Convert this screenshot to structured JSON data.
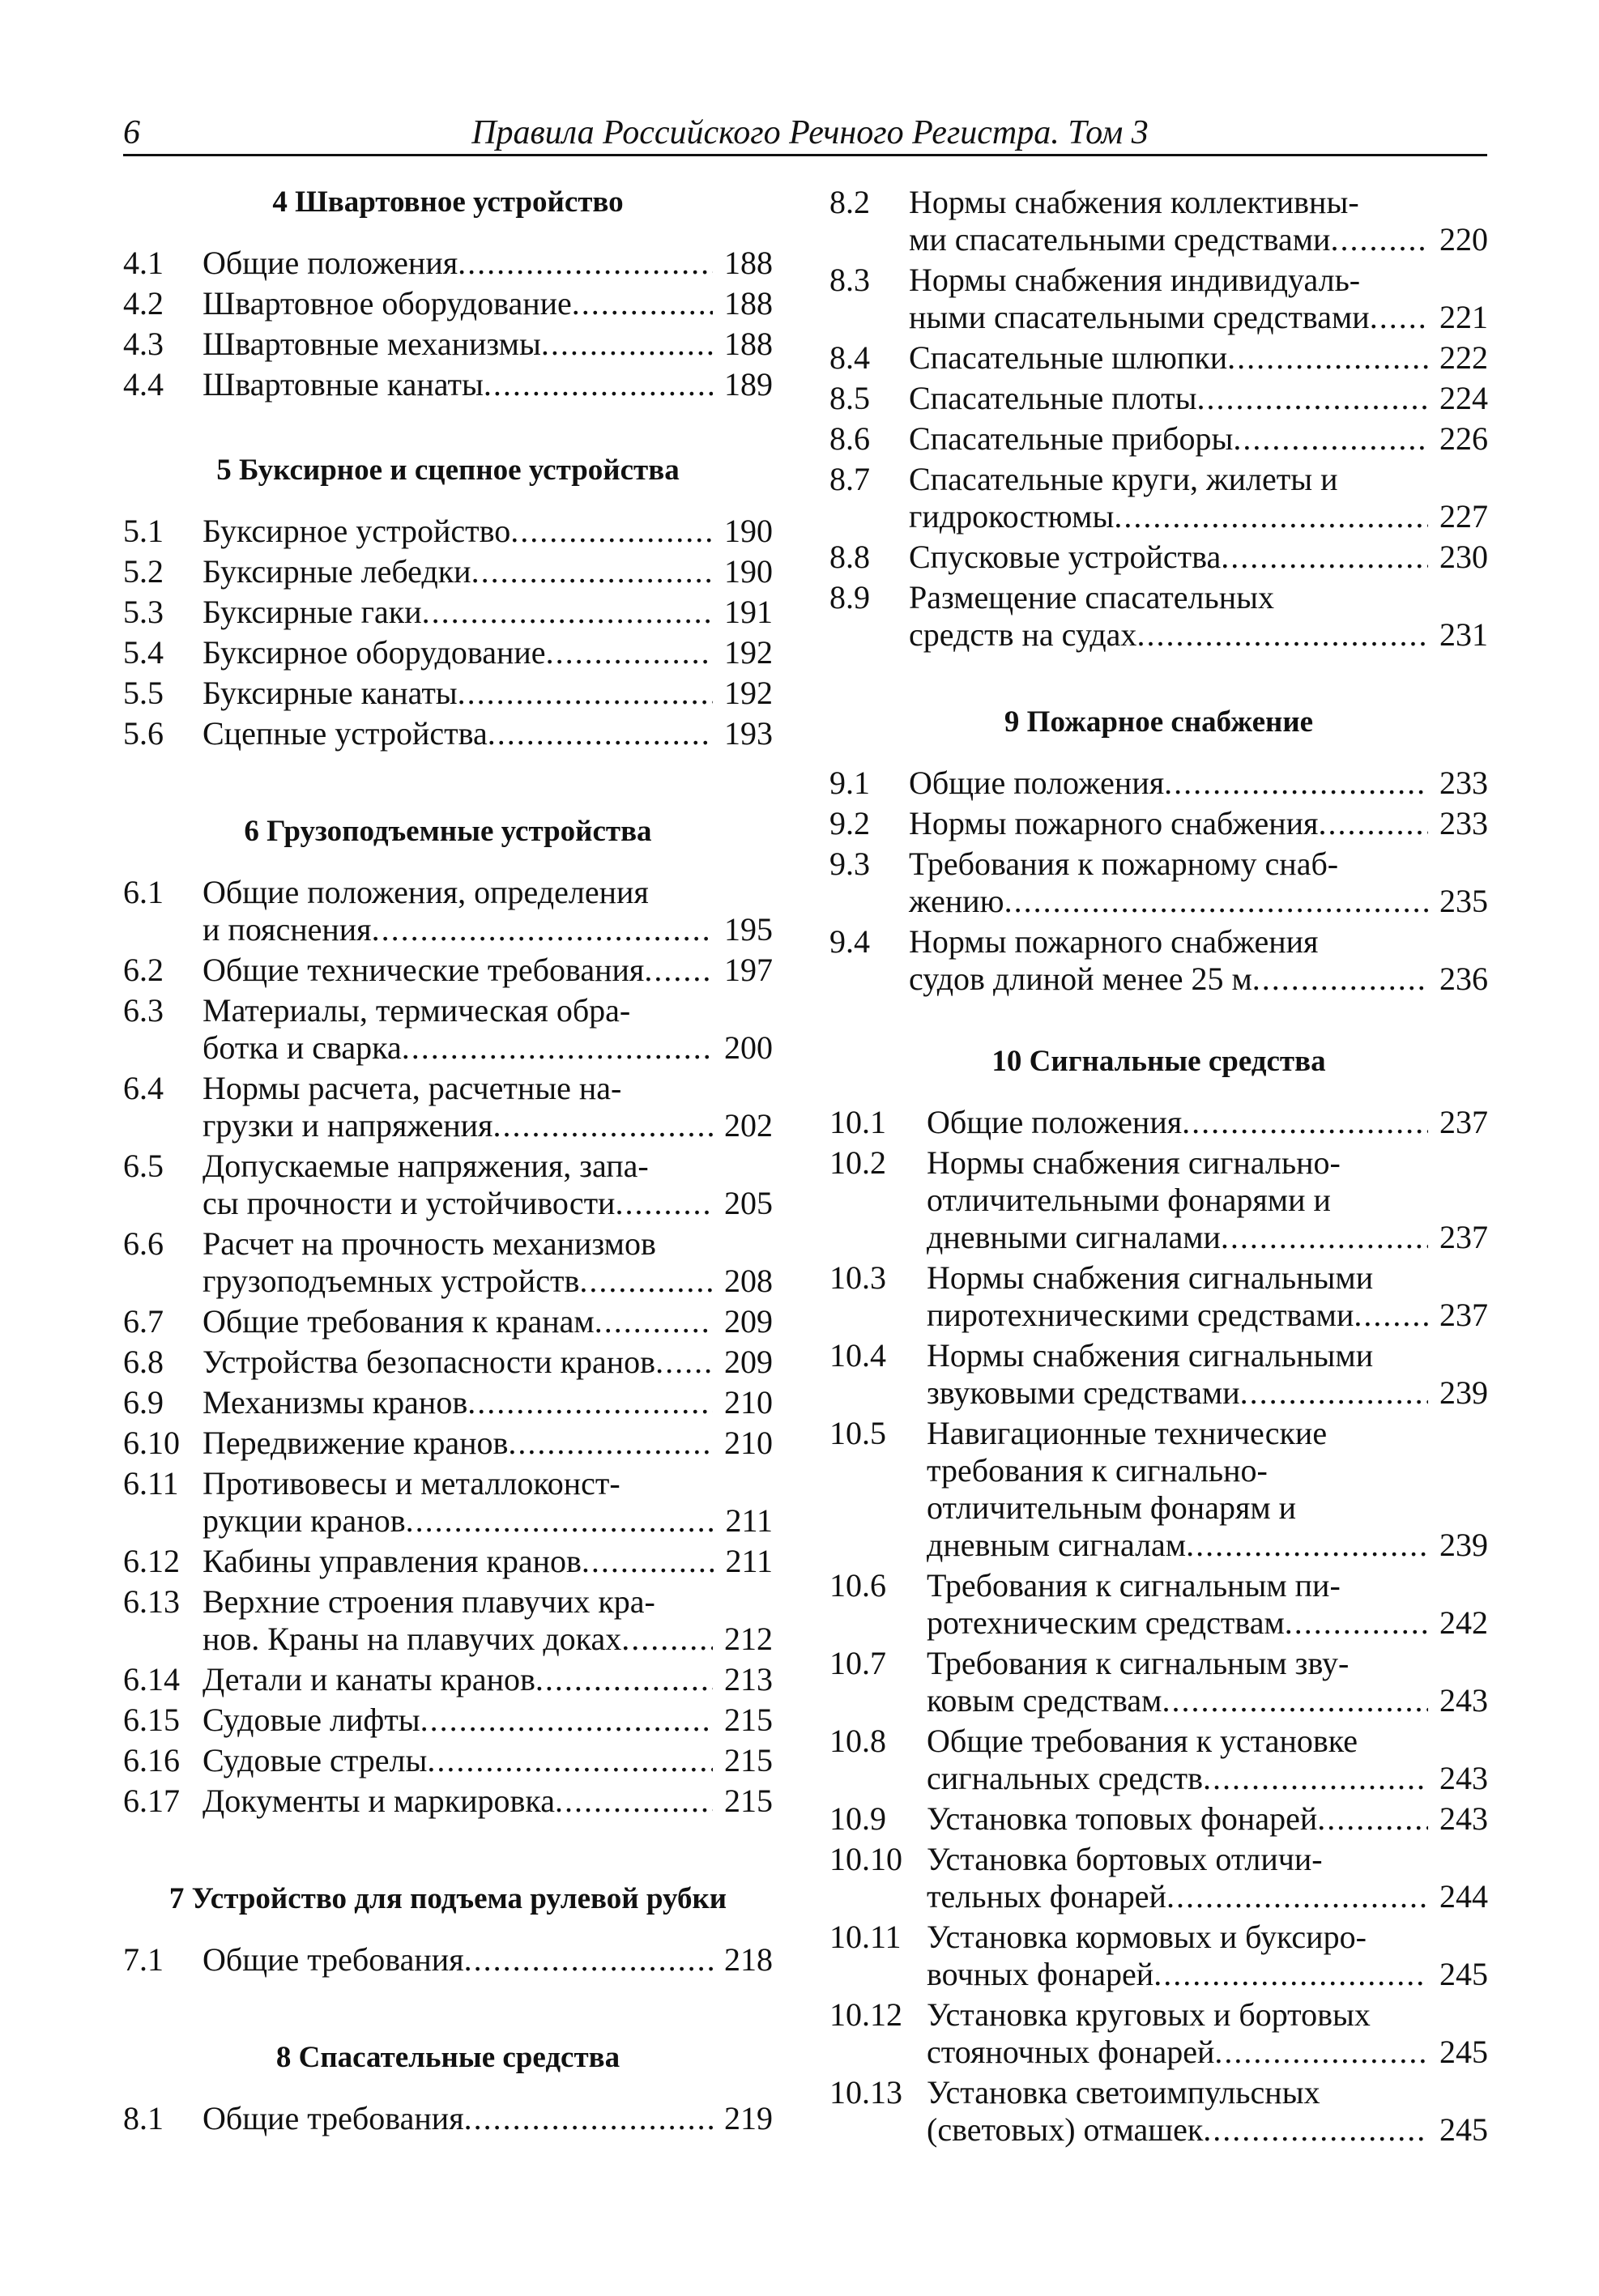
{
  "header": {
    "page_number": "6",
    "title": "Правила Российского Речного Регистра. Том 3"
  },
  "left": {
    "sections": [
      {
        "heading": "4 Швартовное устройство",
        "items": [
          {
            "num": "4.1",
            "lines": [
              "Общие положения"
            ],
            "page": "188"
          },
          {
            "num": "4.2",
            "lines": [
              "Швартовное оборудование"
            ],
            "page": "188"
          },
          {
            "num": "4.3",
            "lines": [
              "Швартовные механизмы"
            ],
            "page": "188"
          },
          {
            "num": "4.4",
            "lines": [
              "Швартовные канаты"
            ],
            "page": "189"
          }
        ]
      },
      {
        "heading": "5 Буксирное и сцепное устройства",
        "items": [
          {
            "num": "5.1",
            "lines": [
              "Буксирное устройство"
            ],
            "page": "190"
          },
          {
            "num": "5.2",
            "lines": [
              "Буксирные лебедки"
            ],
            "page": "190"
          },
          {
            "num": "5.3",
            "lines": [
              "Буксирные гаки"
            ],
            "page": "191"
          },
          {
            "num": "5.4",
            "lines": [
              "Буксирное оборудование"
            ],
            "page": "192"
          },
          {
            "num": "5.5",
            "lines": [
              "Буксирные канаты"
            ],
            "page": "192"
          },
          {
            "num": "5.6",
            "lines": [
              "Сцепные устройства"
            ],
            "page": "193"
          }
        ]
      },
      {
        "heading": "6 Грузоподъемные устройства",
        "items": [
          {
            "num": "6.1",
            "lines": [
              "Общие положения, определения",
              "и пояснения"
            ],
            "page": "195"
          },
          {
            "num": "6.2",
            "lines": [
              "Общие технические требования"
            ],
            "page": "197"
          },
          {
            "num": "6.3",
            "lines": [
              "Материалы, термическая обра-",
              "ботка и сварка"
            ],
            "page": "200"
          },
          {
            "num": "6.4",
            "lines": [
              "Нормы расчета, расчетные на-",
              "грузки и напряжения"
            ],
            "page": "202"
          },
          {
            "num": "6.5",
            "lines": [
              "Допускаемые напряжения, запа-",
              "сы прочности и устойчивости"
            ],
            "page": "205"
          },
          {
            "num": "6.6",
            "lines": [
              "Расчет на прочность механизмов",
              "грузоподъемных устройств"
            ],
            "page": "208"
          },
          {
            "num": "6.7",
            "lines": [
              "Общие требования к кранам"
            ],
            "page": "209"
          },
          {
            "num": "6.8",
            "lines": [
              "Устройства безопасности кранов"
            ],
            "page": "209"
          },
          {
            "num": "6.9",
            "lines": [
              "Механизмы кранов"
            ],
            "page": "210"
          },
          {
            "num": "6.10",
            "lines": [
              "Передвижение кранов"
            ],
            "page": "210"
          },
          {
            "num": "6.11",
            "lines": [
              "Противовесы и металлоконст-",
              "рукции кранов"
            ],
            "page": "211"
          },
          {
            "num": "6.12",
            "lines": [
              "Кабины управления кранов"
            ],
            "page": "211"
          },
          {
            "num": "6.13",
            "lines": [
              "Верхние строения плавучих кра-",
              "нов. Краны на плавучих доках"
            ],
            "page": "212"
          },
          {
            "num": "6.14",
            "lines": [
              "Детали и канаты кранов"
            ],
            "page": "213"
          },
          {
            "num": "6.15",
            "lines": [
              "Судовые лифты"
            ],
            "page": "215"
          },
          {
            "num": "6.16",
            "lines": [
              "Судовые стрелы"
            ],
            "page": "215"
          },
          {
            "num": "6.17",
            "lines": [
              "Документы и маркировка"
            ],
            "page": "215"
          }
        ]
      },
      {
        "heading": "7 Устройство для подъема рулевой рубки",
        "items": [
          {
            "num": "7.1",
            "lines": [
              "Общие требования"
            ],
            "page": "218"
          }
        ]
      },
      {
        "heading": "8 Спасательные средства",
        "items": [
          {
            "num": "8.1",
            "lines": [
              "Общие требования"
            ],
            "page": "219"
          }
        ]
      }
    ]
  },
  "right": {
    "sections": [
      {
        "heading": "",
        "items": [
          {
            "num": "8.2",
            "lines": [
              "Нормы снабжения коллективны-",
              "ми спасательными средствами"
            ],
            "page": "220"
          },
          {
            "num": "8.3",
            "lines": [
              "Нормы снабжения индивидуаль-",
              "ными спасательными средствами"
            ],
            "page": "221"
          },
          {
            "num": "8.4",
            "lines": [
              "Спасательные шлюпки"
            ],
            "page": "222"
          },
          {
            "num": "8.5",
            "lines": [
              "Спасательные плоты"
            ],
            "page": "224"
          },
          {
            "num": "8.6",
            "lines": [
              "Спасательные приборы"
            ],
            "page": "226"
          },
          {
            "num": "8.7",
            "lines": [
              "Спасательные круги, жилеты и",
              "гидрокостюмы"
            ],
            "page": "227"
          },
          {
            "num": "8.8",
            "lines": [
              "Спусковые устройства"
            ],
            "page": "230"
          },
          {
            "num": "8.9",
            "lines": [
              "Размещение спасательных",
              "средств на судах"
            ],
            "page": "231"
          }
        ]
      },
      {
        "heading": "9 Пожарное снабжение",
        "items": [
          {
            "num": "9.1",
            "lines": [
              "Общие положения"
            ],
            "page": "233"
          },
          {
            "num": "9.2",
            "lines": [
              "Нормы пожарного снабжения"
            ],
            "page": "233"
          },
          {
            "num": "9.3",
            "lines": [
              "Требования к пожарному снаб-",
              "жению"
            ],
            "page": "235"
          },
          {
            "num": "9.4",
            "lines": [
              "Нормы пожарного снабжения",
              "судов длиной менее 25 м"
            ],
            "page": "236"
          }
        ]
      },
      {
        "heading": "10 Сигнальные средства",
        "items": [
          {
            "num": "10.1",
            "lines": [
              "Общие положения"
            ],
            "page": "237"
          },
          {
            "num": "10.2",
            "lines": [
              "Нормы снабжения сигнально-",
              "отличительными фонарями и",
              "дневными сигналами"
            ],
            "page": "237"
          },
          {
            "num": "10.3",
            "lines": [
              "Нормы снабжения сигнальными",
              "пиротехническими средствами"
            ],
            "page": "237"
          },
          {
            "num": "10.4",
            "lines": [
              "Нормы снабжения сигнальными",
              "звуковыми средствами"
            ],
            "page": "239"
          },
          {
            "num": "10.5",
            "lines": [
              "Навигационные технические",
              "требования к сигнально-",
              "отличительным фонарям и",
              "дневным сигналам"
            ],
            "page": "239"
          },
          {
            "num": "10.6",
            "lines": [
              "Требования к сигнальным пи-",
              "ротехническим средствам"
            ],
            "page": "242"
          },
          {
            "num": "10.7",
            "lines": [
              "Требования к сигнальным зву-",
              "ковым средствам"
            ],
            "page": "243"
          },
          {
            "num": "10.8",
            "lines": [
              "Общие требования к установке",
              "сигнальных средств"
            ],
            "page": "243"
          },
          {
            "num": "10.9",
            "lines": [
              "Установка топовых фонарей"
            ],
            "page": "243"
          },
          {
            "num": "10.10",
            "lines": [
              "Установка бортовых отличи-",
              "тельных фонарей"
            ],
            "page": "244"
          },
          {
            "num": "10.11",
            "lines": [
              "Установка кормовых и буксиро-",
              "вочных фонарей"
            ],
            "page": "245"
          },
          {
            "num": "10.12",
            "lines": [
              "Установка круговых и бортовых",
              "стояночных фонарей"
            ],
            "page": "245"
          },
          {
            "num": "10.13",
            "lines": [
              "Установка светоимпульсных",
              "(световых) отмашек"
            ],
            "page": "245"
          }
        ]
      }
    ]
  }
}
